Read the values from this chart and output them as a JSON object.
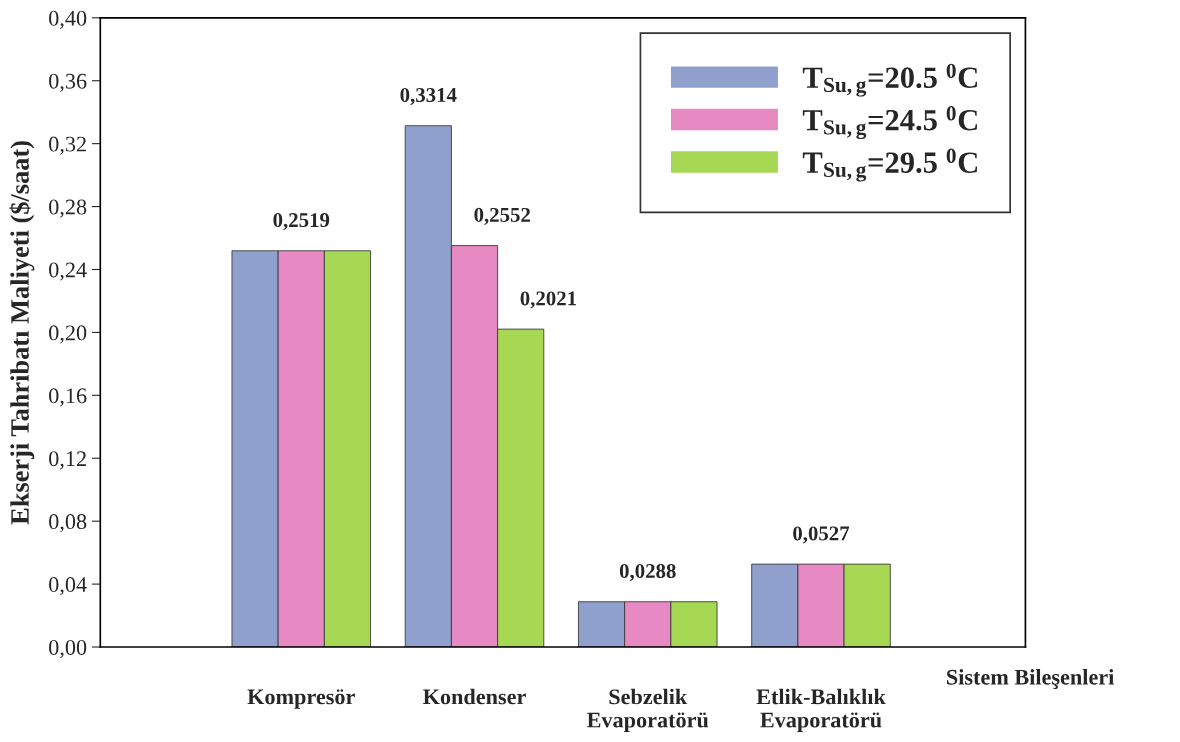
{
  "chart_data": {
    "type": "bar",
    "ylabel": "Ekserji Tahribatı Maliyeti ($/saat)",
    "xlabel": "Sistem Bileşenleri",
    "categories": [
      "Kompresör",
      "Kondenser",
      "Sebzelik\nEvaporatörü",
      "Etlik-Balıklık\nEvaporatörü"
    ],
    "series": [
      {
        "name": "T$_{Su,g}$=20.5 $^{0}$C",
        "color": "#8ea0cb",
        "values": [
          0.2519,
          0.3314,
          0.0288,
          0.0527
        ],
        "value_labels": [
          null,
          "0,3314",
          null,
          null
        ]
      },
      {
        "name": "T$_{Su,g}$=24.5 $^{0}$C",
        "color": "#e78ac3",
        "values": [
          0.2519,
          0.2552,
          0.0288,
          0.0527
        ],
        "value_labels": [
          "0,2519",
          "0,2552",
          "0,0288",
          "0,0527"
        ]
      },
      {
        "name": "T$_{Su,g}$=29.5 $^{0}$C",
        "color": "#a6d854",
        "values": [
          0.2519,
          0.2021,
          0.0288,
          0.0527
        ],
        "value_labels": [
          null,
          "0,2021",
          null,
          null
        ]
      }
    ],
    "ylim": [
      0,
      0.4
    ],
    "yticks": [
      {
        "value": 0,
        "label": "0,00"
      },
      {
        "value": 0.04,
        "label": "0,04"
      },
      {
        "value": 0.08,
        "label": "0,08"
      },
      {
        "value": 0.12,
        "label": "0,12"
      },
      {
        "value": 0.16,
        "label": "0,16"
      },
      {
        "value": 0.2,
        "label": "0,20"
      },
      {
        "value": 0.24,
        "label": "0,24"
      },
      {
        "value": 0.28,
        "label": "0,28"
      },
      {
        "value": 0.32,
        "label": "0,32"
      },
      {
        "value": 0.36,
        "label": "0,36"
      },
      {
        "value": 0.4,
        "label": "0,40"
      }
    ],
    "grid": false,
    "legend": "top right"
  }
}
